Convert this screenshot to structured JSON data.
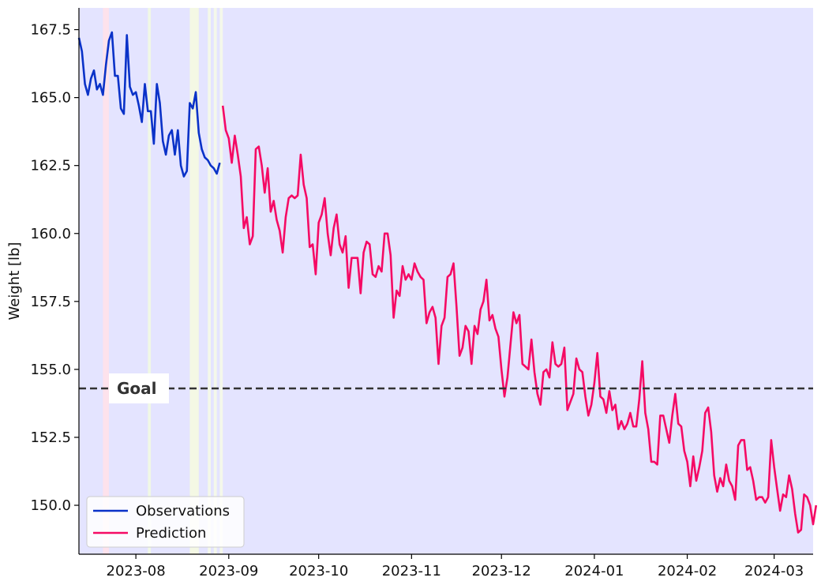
{
  "chart_data": {
    "type": "line",
    "xlabel": "",
    "ylabel": "Weight [lb]",
    "xlim": [
      "2023-07-13",
      "2024-03-14"
    ],
    "ylim": [
      148.2,
      168.3
    ],
    "x_ticks": [
      "2023-08-01",
      "2023-09-01",
      "2023-10-01",
      "2023-11-01",
      "2023-12-01",
      "2024-01-01",
      "2024-02-01",
      "2024-03-01"
    ],
    "x_tick_labels": [
      "2023-08",
      "2023-09",
      "2023-10",
      "2023-11",
      "2023-12",
      "2024-01",
      "2024-02",
      "2024-03"
    ],
    "y_ticks": [
      150.0,
      152.5,
      155.0,
      157.5,
      160.0,
      162.5,
      165.0,
      167.5
    ],
    "y_tick_labels": [
      "150.0",
      "152.5",
      "155.0",
      "157.5",
      "160.0",
      "162.5",
      "165.0",
      "167.5"
    ],
    "background_color": "#e4e4ff",
    "goal": {
      "label": "Goal",
      "value": 154.3,
      "color": "#333333"
    },
    "highlight_bands": [
      {
        "start": "2023-07-21",
        "end": "2023-07-23",
        "color": "#fde2ec"
      },
      {
        "start": "2023-08-05",
        "end": "2023-08-06",
        "color": "#f0f8e6"
      },
      {
        "start": "2023-08-19",
        "end": "2023-08-22",
        "color": "#f4f8e4"
      },
      {
        "start": "2023-08-25",
        "end": "2023-08-26",
        "color": "#f4f8ea"
      },
      {
        "start": "2023-08-27",
        "end": "2023-08-28",
        "color": "#f4f8ea"
      },
      {
        "start": "2023-08-29",
        "end": "2023-08-30",
        "color": "#f4f8ea"
      }
    ],
    "legend": {
      "placement": "lower-left",
      "entries": [
        "Observations",
        "Prediction"
      ]
    },
    "series": [
      {
        "name": "Observations",
        "color": "#0a32c8",
        "x": [
          "2023-07-13",
          "2023-07-14",
          "2023-07-15",
          "2023-07-16",
          "2023-07-17",
          "2023-07-18",
          "2023-07-19",
          "2023-07-20",
          "2023-07-21",
          "2023-07-22",
          "2023-07-23",
          "2023-07-24",
          "2023-07-25",
          "2023-07-26",
          "2023-07-27",
          "2023-07-28",
          "2023-07-29",
          "2023-07-30",
          "2023-07-31",
          "2023-08-01",
          "2023-08-02",
          "2023-08-03",
          "2023-08-04",
          "2023-08-05",
          "2023-08-06",
          "2023-08-07",
          "2023-08-08",
          "2023-08-09",
          "2023-08-10",
          "2023-08-11",
          "2023-08-12",
          "2023-08-13",
          "2023-08-14",
          "2023-08-15",
          "2023-08-16",
          "2023-08-17",
          "2023-08-18",
          "2023-08-19",
          "2023-08-20",
          "2023-08-21",
          "2023-08-22",
          "2023-08-23",
          "2023-08-24",
          "2023-08-25",
          "2023-08-26",
          "2023-08-27",
          "2023-08-28",
          "2023-08-29"
        ],
        "y": [
          167.2,
          166.7,
          165.5,
          165.1,
          165.7,
          166.0,
          165.3,
          165.5,
          165.1,
          166.2,
          167.1,
          167.4,
          165.8,
          165.8,
          164.6,
          164.4,
          167.3,
          165.4,
          165.1,
          165.2,
          164.7,
          164.1,
          165.5,
          164.5,
          164.5,
          163.3,
          165.5,
          164.8,
          163.4,
          162.9,
          163.6,
          163.8,
          162.9,
          163.8,
          162.5,
          162.1,
          162.3,
          164.8,
          164.6,
          165.2,
          163.7,
          163.1,
          162.8,
          162.7,
          162.5,
          162.4,
          162.2,
          162.6
        ]
      },
      {
        "name": "Prediction",
        "color": "#f50a64",
        "x_start": "2023-08-30",
        "x_step_days": 1,
        "y": [
          164.7,
          163.8,
          163.5,
          162.6,
          163.6,
          162.9,
          162.1,
          160.2,
          160.6,
          159.6,
          159.9,
          163.1,
          163.2,
          162.5,
          161.5,
          162.4,
          160.8,
          161.2,
          160.5,
          160.1,
          159.3,
          160.6,
          161.3,
          161.4,
          161.3,
          161.4,
          162.9,
          161.8,
          161.3,
          159.5,
          159.6,
          158.5,
          160.4,
          160.7,
          161.3,
          160.0,
          159.2,
          160.2,
          160.7,
          159.6,
          159.3,
          159.9,
          158.0,
          159.1,
          159.1,
          159.1,
          157.8,
          159.3,
          159.7,
          159.6,
          158.5,
          158.4,
          158.8,
          158.6,
          160.0,
          160.0,
          159.2,
          156.9,
          157.9,
          157.7,
          158.8,
          158.3,
          158.5,
          158.3,
          158.9,
          158.6,
          158.4,
          158.3,
          156.7,
          157.1,
          157.3,
          156.9,
          155.2,
          156.6,
          156.9,
          158.4,
          158.5,
          158.9,
          157.3,
          155.5,
          155.8,
          156.6,
          156.4,
          155.2,
          156.6,
          156.3,
          157.2,
          157.5,
          158.3,
          156.8,
          157.0,
          156.5,
          156.2,
          155.0,
          154.0,
          154.7,
          155.9,
          157.1,
          156.7,
          157.0,
          155.2,
          155.1,
          155.0,
          156.1,
          154.9,
          154.1,
          153.7,
          154.9,
          155.0,
          154.7,
          156.0,
          155.2,
          155.1,
          155.2,
          155.8,
          153.5,
          153.8,
          154.1,
          155.4,
          155.0,
          154.9,
          154.0,
          153.3,
          153.7,
          154.5,
          155.6,
          154.0,
          153.9,
          153.4,
          154.2,
          153.5,
          153.7,
          152.8,
          153.1,
          152.8,
          153.0,
          153.4,
          152.9,
          152.9,
          153.9,
          155.3,
          153.4,
          152.8,
          151.6,
          151.6,
          151.5,
          153.3,
          153.3,
          152.8,
          152.3,
          153.3,
          154.1,
          153.0,
          152.9,
          152.0,
          151.6,
          150.7,
          151.8,
          150.9,
          151.4,
          152.0,
          153.4,
          153.6,
          152.7,
          151.1,
          150.5,
          151.0,
          150.7,
          151.5,
          150.9,
          150.7,
          150.2,
          152.2,
          152.4,
          152.4,
          151.3,
          151.4,
          150.9,
          150.2,
          150.3,
          150.3,
          150.1,
          150.3,
          152.4,
          151.4,
          150.6,
          149.8,
          150.4,
          150.3,
          151.1,
          150.6,
          149.7,
          149.0,
          149.1,
          150.4,
          150.3,
          150.0,
          149.3,
          150.0
        ]
      }
    ]
  }
}
